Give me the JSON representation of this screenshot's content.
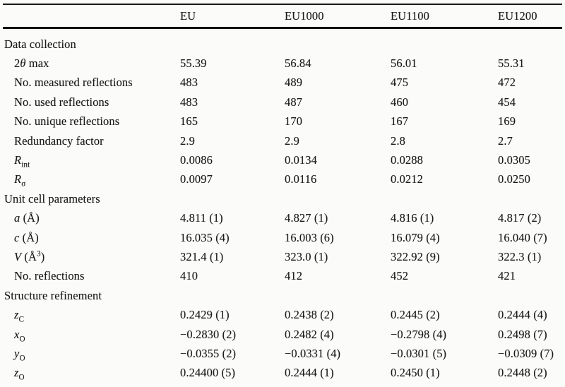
{
  "page": {
    "background_color": "#fbfbf9",
    "text_color": "#1b1b1b",
    "rule_color": "#101010"
  },
  "table": {
    "header": {
      "columns": [
        "EU",
        "EU1000",
        "EU1100",
        "EU1200"
      ]
    },
    "sections": [
      {
        "title": "Data collection",
        "rows": [
          {
            "label": "2_θ_ max",
            "values": [
              "55.39",
              "56.84",
              "56.01",
              "55.31"
            ]
          },
          {
            "label": "No. measured reflections",
            "values": [
              "483",
              "489",
              "475",
              "472"
            ]
          },
          {
            "label": "No. used reflections",
            "values": [
              "483",
              "487",
              "460",
              "454"
            ]
          },
          {
            "label": "No. unique reflections",
            "values": [
              "165",
              "170",
              "167",
              "169"
            ]
          },
          {
            "label": "Redundancy factor",
            "values": [
              "2.9",
              "2.9",
              "2.8",
              "2.7"
            ]
          },
          {
            "label": "_R_~int~",
            "values": [
              "0.0086",
              "0.0134",
              "0.0288",
              "0.0305"
            ]
          },
          {
            "label": "_R_~σ~",
            "values": [
              "0.0097",
              "0.0116",
              "0.0212",
              "0.0250"
            ]
          }
        ]
      },
      {
        "title": "Unit cell parameters",
        "rows": [
          {
            "label": "_a_ (Å)",
            "values": [
              "4.811 (1)",
              "4.827 (1)",
              "4.816 (1)",
              "4.817 (2)"
            ]
          },
          {
            "label": "_c_ (Å)",
            "values": [
              "16.035 (4)",
              "16.003 (6)",
              "16.079 (4)",
              "16.040 (7)"
            ]
          },
          {
            "label": "_V_ (Å^3^)",
            "values": [
              "321.4 (1)",
              "323.0 (1)",
              "322.92 (9)",
              "322.3 (1)"
            ]
          },
          {
            "label": "No. reflections",
            "values": [
              "410",
              "412",
              "452",
              "421"
            ]
          }
        ]
      },
      {
        "title": "Structure refinement",
        "rows": [
          {
            "label": "_z_~C~",
            "values": [
              "0.2429 (1)",
              "0.2438 (2)",
              "0.2445 (2)",
              "0.2444 (4)"
            ]
          },
          {
            "label": "_x_~O~",
            "values": [
              "−0.2830 (2)",
              "0.2482 (4)",
              "−0.2798 (4)",
              "0.2498 (7)"
            ]
          },
          {
            "label": "_y_~O~",
            "values": [
              "−0.0355 (2)",
              "−0.0331 (4)",
              "−0.0301 (5)",
              "−0.0309 (7)"
            ]
          },
          {
            "label": "_z_~O~",
            "values": [
              "0.24400 (5)",
              "0.2444 (1)",
              "0.2450 (1)",
              "0.2448 (2)"
            ]
          }
        ]
      }
    ]
  }
}
